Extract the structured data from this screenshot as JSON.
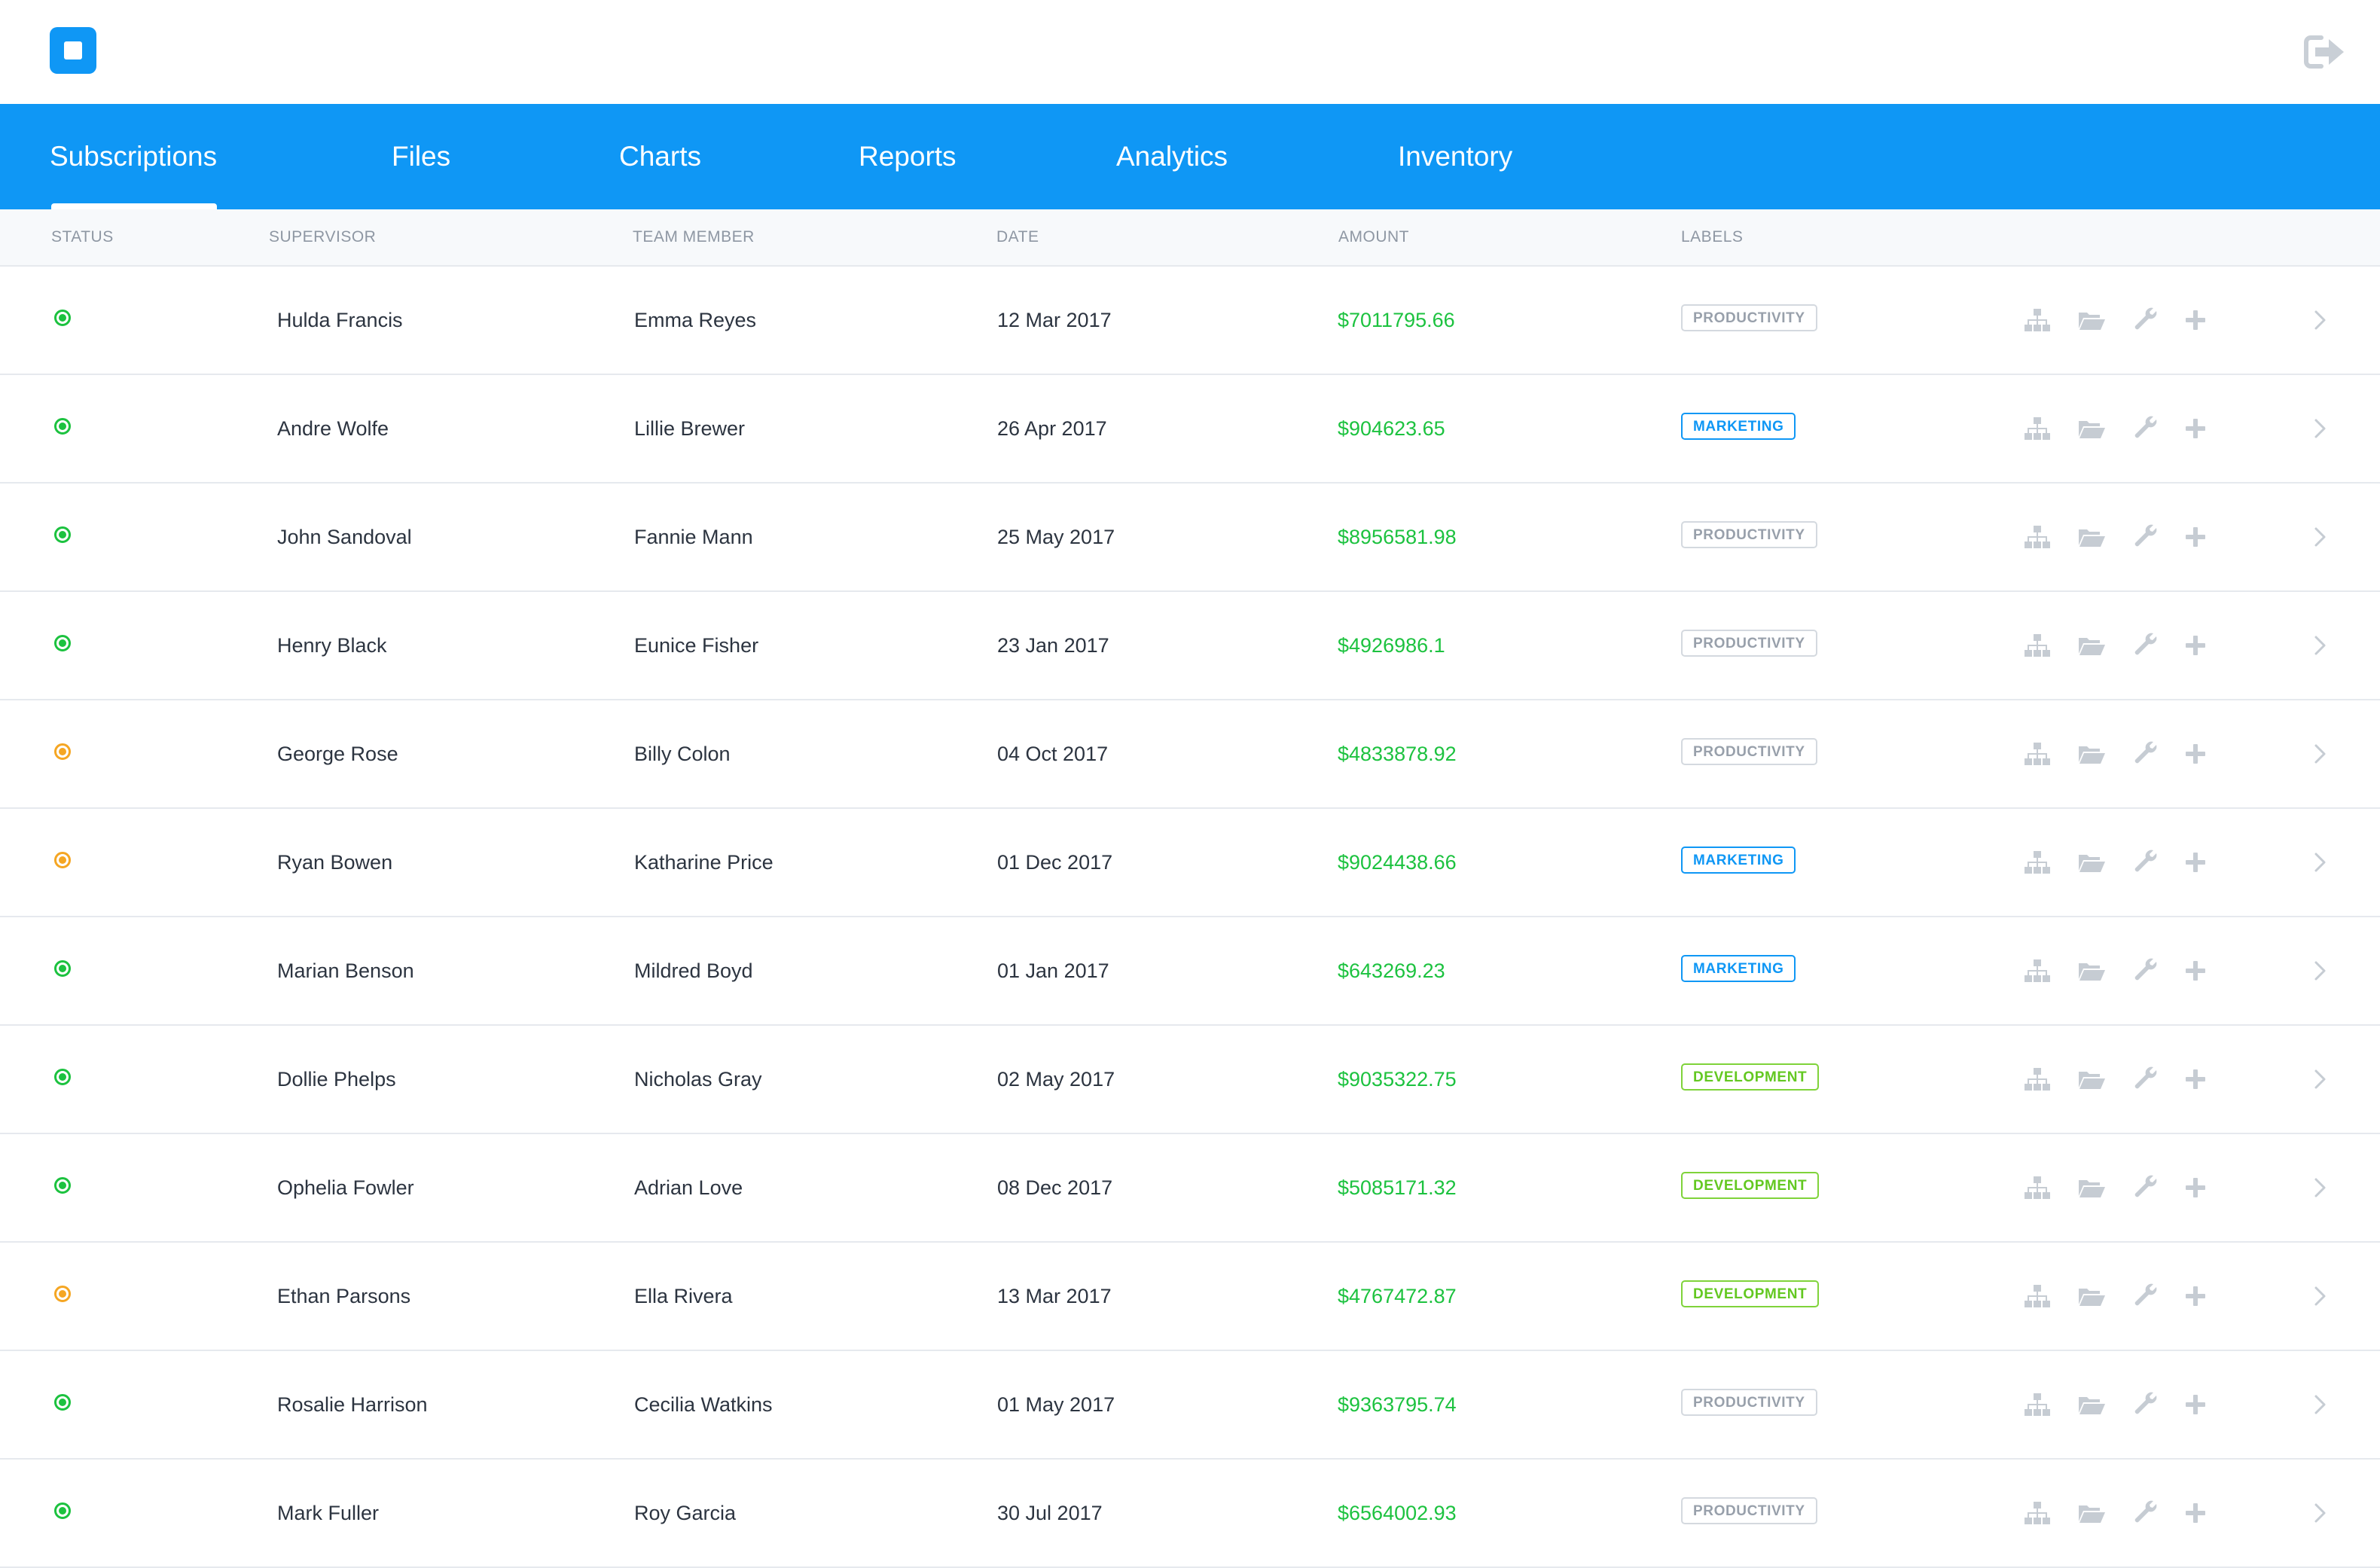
{
  "nav": {
    "tabs": [
      {
        "label": "Subscriptions",
        "active": true
      },
      {
        "label": "Files"
      },
      {
        "label": "Charts"
      },
      {
        "label": "Reports"
      },
      {
        "label": "Analytics"
      },
      {
        "label": "Inventory"
      }
    ]
  },
  "icons": {
    "logo": "app-logo-icon",
    "logout": "logout-icon",
    "actions": [
      "sitemap-icon",
      "folder-open-icon",
      "wrench-icon",
      "plus-icon",
      "chevron-right-icon"
    ]
  },
  "colors": {
    "brand": "#0f97f5",
    "status_active": "#1cc23f",
    "status_pending": "#f5a623",
    "amount": "#1cc23f"
  },
  "table": {
    "headers": {
      "status": "STATUS",
      "supervisor": "SUPERVISOR",
      "team_member": "TEAM MEMBER",
      "date": "DATE",
      "amount": "AMOUNT",
      "labels": "LABELS"
    },
    "rows": [
      {
        "status": "green",
        "supervisor": "Hulda Francis",
        "team_member": "Emma Reyes",
        "date": "12 Mar 2017",
        "amount": "$7011795.66",
        "label": "PRODUCTIVITY"
      },
      {
        "status": "green",
        "supervisor": "Andre Wolfe",
        "team_member": "Lillie Brewer",
        "date": "26 Apr 2017",
        "amount": "$904623.65",
        "label": "MARKETING"
      },
      {
        "status": "green",
        "supervisor": "John Sandoval",
        "team_member": "Fannie Mann",
        "date": "25 May 2017",
        "amount": "$8956581.98",
        "label": "PRODUCTIVITY"
      },
      {
        "status": "green",
        "supervisor": "Henry Black",
        "team_member": "Eunice Fisher",
        "date": "23 Jan 2017",
        "amount": "$4926986.1",
        "label": "PRODUCTIVITY"
      },
      {
        "status": "orange",
        "supervisor": "George Rose",
        "team_member": "Billy Colon",
        "date": "04 Oct 2017",
        "amount": "$4833878.92",
        "label": "PRODUCTIVITY"
      },
      {
        "status": "orange",
        "supervisor": "Ryan Bowen",
        "team_member": "Katharine Price",
        "date": "01 Dec 2017",
        "amount": "$9024438.66",
        "label": "MARKETING"
      },
      {
        "status": "green",
        "supervisor": "Marian Benson",
        "team_member": "Mildred Boyd",
        "date": "01 Jan 2017",
        "amount": "$643269.23",
        "label": "MARKETING"
      },
      {
        "status": "green",
        "supervisor": "Dollie Phelps",
        "team_member": "Nicholas Gray",
        "date": "02 May 2017",
        "amount": "$9035322.75",
        "label": "DEVELOPMENT"
      },
      {
        "status": "green",
        "supervisor": "Ophelia Fowler",
        "team_member": "Adrian Love",
        "date": "08 Dec 2017",
        "amount": "$5085171.32",
        "label": "DEVELOPMENT"
      },
      {
        "status": "orange",
        "supervisor": "Ethan Parsons",
        "team_member": "Ella Rivera",
        "date": "13 Mar 2017",
        "amount": "$4767472.87",
        "label": "DEVELOPMENT"
      },
      {
        "status": "green",
        "supervisor": "Rosalie Harrison",
        "team_member": "Cecilia Watkins",
        "date": "01 May 2017",
        "amount": "$9363795.74",
        "label": "PRODUCTIVITY"
      },
      {
        "status": "green",
        "supervisor": "Mark Fuller",
        "team_member": "Roy Garcia",
        "date": "30 Jul 2017",
        "amount": "$6564002.93",
        "label": "PRODUCTIVITY"
      }
    ]
  }
}
